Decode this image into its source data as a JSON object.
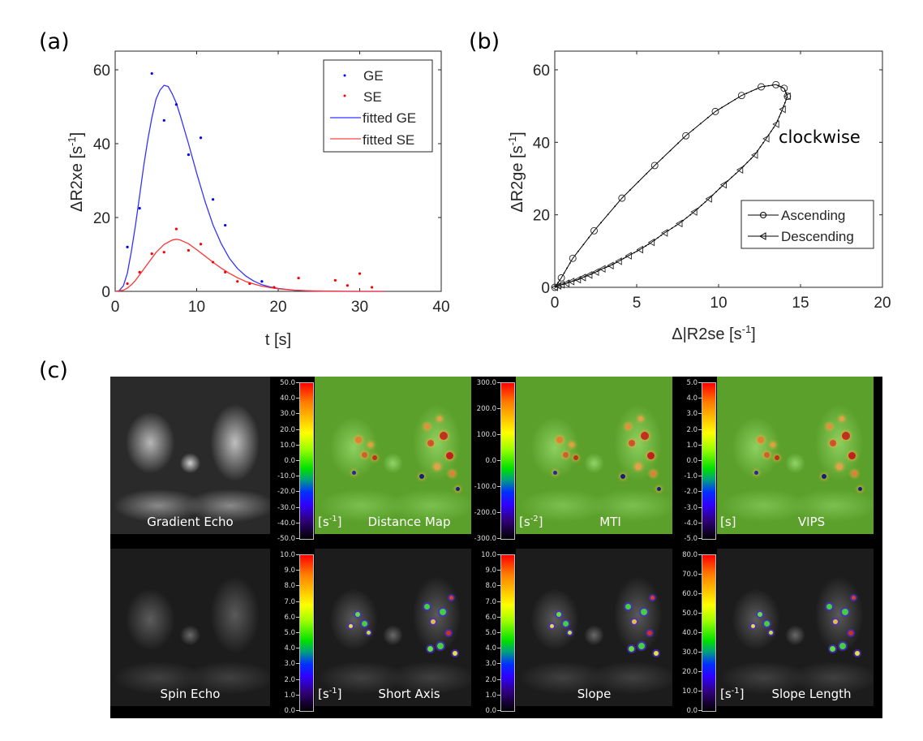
{
  "panel_labels": {
    "a": "(a)",
    "b": "(b)",
    "c": "(c)"
  },
  "chart_data": [
    {
      "id": "a",
      "type": "scatter",
      "title": "",
      "xlabel": "t [s]",
      "ylabel_prefix": "ΔR2xe [s",
      "ylabel_sup": "-1",
      "ylabel_suffix": "]",
      "xlim": [
        0,
        40
      ],
      "ylim": [
        0,
        65
      ],
      "xticks": [
        0,
        10,
        20,
        30,
        40
      ],
      "yticks": [
        0,
        20,
        40,
        60
      ],
      "grid": false,
      "legend_position": "top-right",
      "legend": [
        "GE",
        "SE",
        "fitted GE",
        "fitted SE"
      ],
      "colors": {
        "GE": "#0000ff",
        "SE": "#ff0000",
        "fitted GE": "#3333ff",
        "fitted SE": "#ff3333"
      },
      "series": [
        {
          "name": "GE",
          "style": "points",
          "x": [
            1.5,
            3.0,
            4.5,
            6.0,
            7.5,
            9.0,
            10.5,
            12.0,
            13.5,
            18.0
          ],
          "y": [
            12.0,
            22.5,
            59.0,
            46.3,
            50.6,
            37.0,
            41.6,
            24.9,
            17.9,
            2.7
          ]
        },
        {
          "name": "SE",
          "style": "points",
          "x": [
            1.5,
            3.0,
            4.5,
            6.0,
            7.5,
            9.0,
            10.5,
            12.0,
            13.5,
            15.0,
            16.5,
            19.5,
            22.5,
            27.0,
            28.5,
            30.0,
            31.5
          ],
          "y": [
            2.1,
            5.2,
            10.2,
            10.6,
            16.9,
            11.1,
            12.8,
            7.9,
            5.2,
            2.7,
            2.1,
            1.1,
            3.6,
            3.0,
            1.6,
            4.8,
            1.1
          ]
        },
        {
          "name": "fitted GE",
          "style": "line",
          "x": [
            0,
            0.5,
            1,
            1.5,
            2,
            2.5,
            3,
            3.5,
            4,
            4.5,
            5,
            5.5,
            6,
            6.5,
            7,
            7.5,
            8,
            9,
            10,
            11,
            12,
            13,
            14,
            15,
            16,
            17,
            18,
            19,
            20,
            22,
            24,
            26,
            28,
            30,
            33
          ],
          "y": [
            0,
            0.2,
            1.5,
            5,
            11,
            18,
            26,
            34,
            41,
            47,
            52,
            54.5,
            55.8,
            55.5,
            53.5,
            51,
            47.5,
            40,
            32,
            24.5,
            18,
            13,
            9,
            6.2,
            4.2,
            2.8,
            1.8,
            1.2,
            0.8,
            0.3,
            0.1,
            0.05,
            0,
            0,
            0
          ]
        },
        {
          "name": "fitted SE",
          "style": "line",
          "x": [
            0,
            1,
            1.5,
            2,
            2.5,
            3,
            4,
            5,
            6,
            7,
            7.5,
            8,
            9,
            10,
            11,
            12,
            13,
            14,
            15,
            16,
            17,
            18,
            19,
            20,
            22,
            24,
            26,
            28,
            30,
            33
          ],
          "y": [
            0,
            0.3,
            0.9,
            1.8,
            3,
            4.5,
            7.5,
            10.5,
            12.7,
            13.9,
            14.1,
            13.9,
            12.9,
            11.3,
            9.6,
            7.9,
            6.3,
            4.9,
            3.7,
            2.7,
            2.0,
            1.4,
            1.0,
            0.7,
            0.3,
            0.15,
            0.07,
            0.03,
            0.01,
            0
          ]
        }
      ]
    },
    {
      "id": "b",
      "type": "line",
      "title": "",
      "xlabel_prefix": "Δ|R2se [s",
      "xlabel_sup": "-1",
      "xlabel_suffix": "]",
      "ylabel_prefix": "ΔR2ge [s",
      "ylabel_sup": "-1",
      "ylabel_suffix": "]",
      "xlim": [
        0,
        20
      ],
      "ylim": [
        0,
        65
      ],
      "xticks": [
        0,
        5,
        10,
        15,
        20
      ],
      "yticks": [
        0,
        20,
        40,
        60
      ],
      "grid": false,
      "legend_position": "bottom-right",
      "legend": [
        "Ascending",
        "Descending"
      ],
      "annotation": "clockwise",
      "series": [
        {
          "name": "Ascending",
          "marker": "circle",
          "x": [
            0,
            0.4,
            1.1,
            2.4,
            4.1,
            6.1,
            8.0,
            9.8,
            11.4,
            12.6,
            13.5,
            14.0,
            14.2
          ],
          "y": [
            0,
            2.6,
            8.0,
            15.6,
            24.6,
            33.6,
            41.8,
            48.5,
            52.9,
            55.3,
            55.9,
            54.9,
            52.7
          ]
        },
        {
          "name": "Descending",
          "marker": "triangle-left",
          "x": [
            14.2,
            13.9,
            13.5,
            12.9,
            12.2,
            11.3,
            10.3,
            9.4,
            8.5,
            7.6,
            6.7,
            5.9,
            5.2,
            4.5,
            3.9,
            3.4,
            2.9,
            2.5,
            2.1,
            1.7,
            1.4,
            1.0,
            0.7,
            0.4,
            0.2,
            0
          ],
          "y": [
            52.7,
            49.1,
            45.0,
            41.0,
            36.5,
            32.4,
            28.3,
            24.4,
            20.8,
            17.6,
            15.0,
            12.4,
            10.4,
            8.7,
            7.2,
            6.0,
            5.1,
            4.2,
            3.4,
            2.7,
            2.1,
            1.6,
            1.1,
            0.7,
            0.4,
            0
          ]
        }
      ]
    }
  ],
  "panel_c": {
    "rows": [
      {
        "base": {
          "label": "Gradient Echo",
          "style": "gray"
        },
        "maps": [
          {
            "label": "Distance Map",
            "unit": "[s",
            "unit_sup": "-1",
            "unit_end": "]",
            "style": "green",
            "ticks": [
              "50.0",
              "40.0",
              "30.0",
              "20.0",
              "10.0",
              "0.0",
              "-10.0",
              "-20.0",
              "-30.0",
              "-40.0",
              "-50.0"
            ]
          },
          {
            "label": "MTI",
            "unit": "[s",
            "unit_sup": "-2",
            "unit_end": "]",
            "style": "green",
            "ticks": [
              "300.0",
              "200.0",
              "100.0",
              "0.0",
              "-100.0",
              "-200.0",
              "-300.0"
            ]
          },
          {
            "label": "VIPS",
            "unit": "[s]",
            "unit_sup": "",
            "unit_end": "",
            "style": "green",
            "ticks": [
              "5.0",
              "4.0",
              "3.0",
              "2.0",
              "1.0",
              "0.0",
              "-1.0",
              "-2.0",
              "-3.0",
              "-4.0",
              "-5.0"
            ]
          }
        ]
      },
      {
        "base": {
          "label": "Spin Echo",
          "style": "dark"
        },
        "maps": [
          {
            "label": "Short Axis",
            "unit": "[s",
            "unit_sup": "-1",
            "unit_end": "]",
            "style": "dark",
            "ticks": [
              "10.0",
              "9.0",
              "8.0",
              "7.0",
              "6.0",
              "5.0",
              "4.0",
              "3.0",
              "2.0",
              "1.0",
              "0.0"
            ]
          },
          {
            "label": "Slope",
            "unit": "",
            "unit_sup": "",
            "unit_end": "",
            "style": "dark",
            "ticks": [
              "10.0",
              "9.0",
              "8.0",
              "7.0",
              "6.0",
              "5.0",
              "4.0",
              "3.0",
              "2.0",
              "1.0",
              "0.0"
            ]
          },
          {
            "label": "Slope Length",
            "unit": "[s",
            "unit_sup": "-1",
            "unit_end": "]",
            "style": "dark",
            "ticks": [
              "80.0",
              "70.0",
              "60.0",
              "50.0",
              "40.0",
              "30.0",
              "20.0",
              "10.0",
              "0.0"
            ]
          }
        ]
      }
    ]
  }
}
